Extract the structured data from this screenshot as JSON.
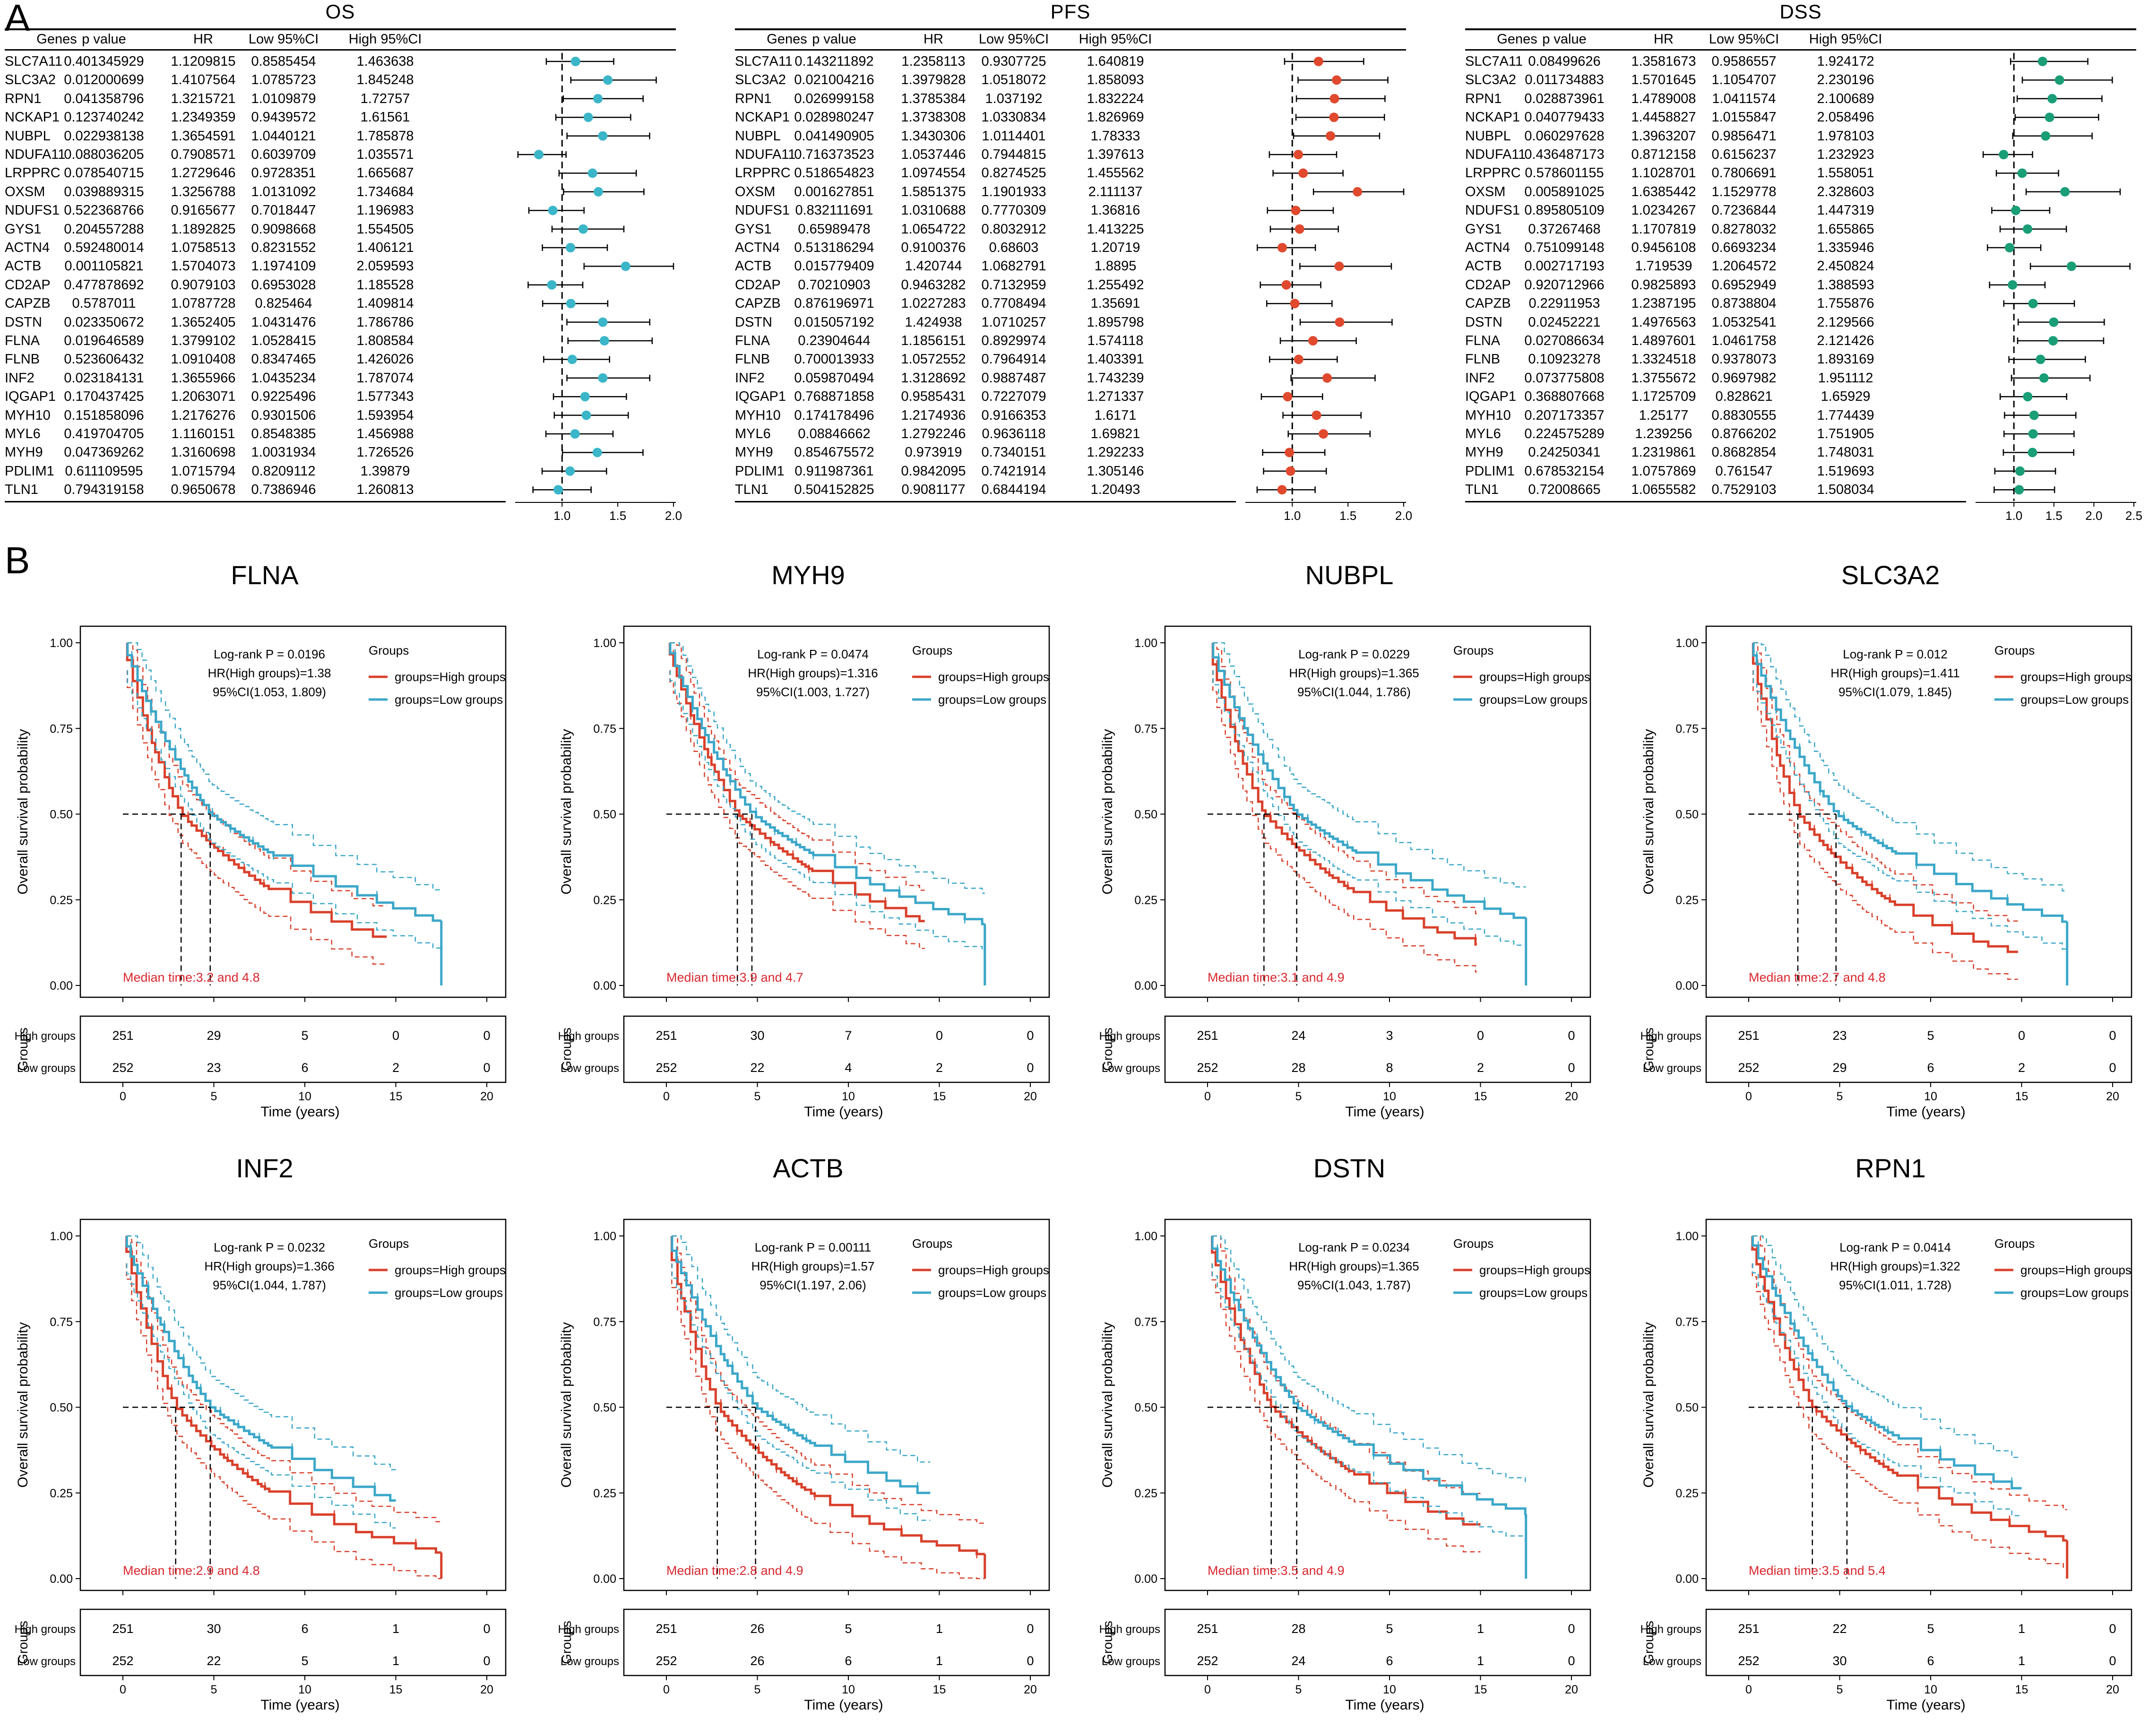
{
  "panels": {
    "a": "A",
    "b": "B"
  },
  "forest_headers": [
    "Genes",
    "p value",
    "HR",
    "Low 95%CI",
    "High 95%CI"
  ],
  "colors": {
    "os": "#3bb6c9",
    "pfs": "#e0492e",
    "dss": "#1a9e77",
    "high": "#d9402b",
    "low": "#3ba7c9"
  },
  "chart_data": [
    {
      "type": "forest",
      "title": "OS",
      "axis_ticks": [
        "1.0",
        "1.5",
        "2.0"
      ],
      "xlim": [
        0.6,
        2.0
      ],
      "rows": [
        {
          "gene": "SLC7A11",
          "p": "0.401345929",
          "hr": "1.1209815",
          "low": "0.8585454",
          "high": "1.463638"
        },
        {
          "gene": "SLC3A2",
          "p": "0.012000699",
          "hr": "1.4107564",
          "low": "1.0785723",
          "high": "1.845248"
        },
        {
          "gene": "RPN1",
          "p": "0.041358796",
          "hr": "1.3215721",
          "low": "1.0109879",
          "high": "1.72757"
        },
        {
          "gene": "NCKAP1",
          "p": "0.123740242",
          "hr": "1.2349359",
          "low": "0.9439572",
          "high": "1.61561"
        },
        {
          "gene": "NUBPL",
          "p": "0.022938138",
          "hr": "1.3654591",
          "low": "1.0440121",
          "high": "1.785878"
        },
        {
          "gene": "NDUFA11",
          "p": "0.088036205",
          "hr": "0.7908571",
          "low": "0.6039709",
          "high": "1.035571"
        },
        {
          "gene": "LRPPRC",
          "p": "0.078540715",
          "hr": "1.2729646",
          "low": "0.9728351",
          "high": "1.665687"
        },
        {
          "gene": "OXSM",
          "p": "0.039889315",
          "hr": "1.3256788",
          "low": "1.0131092",
          "high": "1.734684"
        },
        {
          "gene": "NDUFS1",
          "p": "0.522368766",
          "hr": "0.9165677",
          "low": "0.7018447",
          "high": "1.196983"
        },
        {
          "gene": "GYS1",
          "p": "0.204557288",
          "hr": "1.1892825",
          "low": "0.9098668",
          "high": "1.554505"
        },
        {
          "gene": "ACTN4",
          "p": "0.592480014",
          "hr": "1.0758513",
          "low": "0.8231552",
          "high": "1.406121"
        },
        {
          "gene": "ACTB",
          "p": "0.001105821",
          "hr": "1.5704073",
          "low": "1.1974109",
          "high": "2.059593"
        },
        {
          "gene": "CD2AP",
          "p": "0.477878692",
          "hr": "0.9079103",
          "low": "0.6953028",
          "high": "1.185528"
        },
        {
          "gene": "CAPZB",
          "p": "0.5787011",
          "hr": "1.0787728",
          "low": "0.825464",
          "high": "1.409814"
        },
        {
          "gene": "DSTN",
          "p": "0.023350672",
          "hr": "1.3652405",
          "low": "1.0431476",
          "high": "1.786786"
        },
        {
          "gene": "FLNA",
          "p": "0.019646589",
          "hr": "1.3799102",
          "low": "1.0528415",
          "high": "1.808584"
        },
        {
          "gene": "FLNB",
          "p": "0.523606432",
          "hr": "1.0910408",
          "low": "0.8347465",
          "high": "1.426026"
        },
        {
          "gene": "INF2",
          "p": "0.023184131",
          "hr": "1.3655966",
          "low": "1.0435234",
          "high": "1.787074"
        },
        {
          "gene": "IQGAP1",
          "p": "0.170437425",
          "hr": "1.2063071",
          "low": "0.9225496",
          "high": "1.577343"
        },
        {
          "gene": "MYH10",
          "p": "0.151858096",
          "hr": "1.2176276",
          "low": "0.9301506",
          "high": "1.593954"
        },
        {
          "gene": "MYL6",
          "p": "0.419704705",
          "hr": "1.1160151",
          "low": "0.8548385",
          "high": "1.456988"
        },
        {
          "gene": "MYH9",
          "p": "0.047369262",
          "hr": "1.3160698",
          "low": "1.0031934",
          "high": "1.726526"
        },
        {
          "gene": "PDLIM1",
          "p": "0.611109595",
          "hr": "1.0715794",
          "low": "0.8209112",
          "high": "1.39879"
        },
        {
          "gene": "TLN1",
          "p": "0.794319158",
          "hr": "0.9650678",
          "low": "0.7386946",
          "high": "1.260813"
        }
      ]
    },
    {
      "type": "forest",
      "title": "PFS",
      "axis_ticks": [
        "1.0",
        "1.5",
        "2.0"
      ],
      "xlim": [
        0.6,
        2.0
      ],
      "rows": [
        {
          "gene": "SLC7A11",
          "p": "0.143211892",
          "hr": "1.2358113",
          "low": "0.9307725",
          "high": "1.640819"
        },
        {
          "gene": "SLC3A2",
          "p": "0.021004216",
          "hr": "1.3979828",
          "low": "1.0518072",
          "high": "1.858093"
        },
        {
          "gene": "RPN1",
          "p": "0.026999158",
          "hr": "1.3785384",
          "low": "1.037192",
          "high": "1.832224"
        },
        {
          "gene": "NCKAP1",
          "p": "0.028980247",
          "hr": "1.3738308",
          "low": "1.0330834",
          "high": "1.826969"
        },
        {
          "gene": "NUBPL",
          "p": "0.041490905",
          "hr": "1.3430306",
          "low": "1.0114401",
          "high": "1.78333"
        },
        {
          "gene": "NDUFA11",
          "p": "0.716373523",
          "hr": "1.0537446",
          "low": "0.7944815",
          "high": "1.397613"
        },
        {
          "gene": "LRPPRC",
          "p": "0.518654823",
          "hr": "1.0974554",
          "low": "0.8274525",
          "high": "1.455562"
        },
        {
          "gene": "OXSM",
          "p": "0.001627851",
          "hr": "1.5851375",
          "low": "1.1901933",
          "high": "2.111137"
        },
        {
          "gene": "NDUFS1",
          "p": "0.832111691",
          "hr": "1.0310688",
          "low": "0.7770309",
          "high": "1.36816"
        },
        {
          "gene": "GYS1",
          "p": "0.65989478",
          "hr": "1.0654722",
          "low": "0.8032912",
          "high": "1.413225"
        },
        {
          "gene": "ACTN4",
          "p": "0.513186294",
          "hr": "0.9100376",
          "low": "0.68603",
          "high": "1.20719"
        },
        {
          "gene": "ACTB",
          "p": "0.015779409",
          "hr": "1.420744",
          "low": "1.0682791",
          "high": "1.8895"
        },
        {
          "gene": "CD2AP",
          "p": "0.70210903",
          "hr": "0.9463282",
          "low": "0.7132959",
          "high": "1.255492"
        },
        {
          "gene": "CAPZB",
          "p": "0.876196971",
          "hr": "1.0227283",
          "low": "0.7708494",
          "high": "1.35691"
        },
        {
          "gene": "DSTN",
          "p": "0.015057192",
          "hr": "1.424938",
          "low": "1.0710257",
          "high": "1.895798"
        },
        {
          "gene": "FLNA",
          "p": "0.23904644",
          "hr": "1.1856151",
          "low": "0.8929974",
          "high": "1.574118"
        },
        {
          "gene": "FLNB",
          "p": "0.700013933",
          "hr": "1.0572552",
          "low": "0.7964914",
          "high": "1.403391"
        },
        {
          "gene": "INF2",
          "p": "0.059870494",
          "hr": "1.3128692",
          "low": "0.9887487",
          "high": "1.743239"
        },
        {
          "gene": "IQGAP1",
          "p": "0.768871858",
          "hr": "0.9585431",
          "low": "0.7227079",
          "high": "1.271337"
        },
        {
          "gene": "MYH10",
          "p": "0.174178496",
          "hr": "1.2174936",
          "low": "0.9166353",
          "high": "1.6171"
        },
        {
          "gene": "MYL6",
          "p": "0.08846662",
          "hr": "1.2792246",
          "low": "0.9636118",
          "high": "1.69821"
        },
        {
          "gene": "MYH9",
          "p": "0.854675572",
          "hr": "0.973919",
          "low": "0.7340151",
          "high": "1.292233"
        },
        {
          "gene": "PDLIM1",
          "p": "0.911987361",
          "hr": "0.9842095",
          "low": "0.7421914",
          "high": "1.305146"
        },
        {
          "gene": "TLN1",
          "p": "0.504152825",
          "hr": "0.9081177",
          "low": "0.6844194",
          "high": "1.20493"
        }
      ]
    },
    {
      "type": "forest",
      "title": "DSS",
      "axis_ticks": [
        "1.0",
        "1.5",
        "2.0",
        "2.5"
      ],
      "xlim": [
        0.55,
        2.5
      ],
      "rows": [
        {
          "gene": "SLC7A11",
          "p": "0.08499626",
          "hr": "1.3581673",
          "low": "0.9586557",
          "high": "1.924172"
        },
        {
          "gene": "SLC3A2",
          "p": "0.011734883",
          "hr": "1.5701645",
          "low": "1.1054707",
          "high": "2.230196"
        },
        {
          "gene": "RPN1",
          "p": "0.028873961",
          "hr": "1.4789008",
          "low": "1.0411574",
          "high": "2.100689"
        },
        {
          "gene": "NCKAP1",
          "p": "0.040779433",
          "hr": "1.4458827",
          "low": "1.0155847",
          "high": "2.058496"
        },
        {
          "gene": "NUBPL",
          "p": "0.060297628",
          "hr": "1.3963207",
          "low": "0.9856471",
          "high": "1.978103"
        },
        {
          "gene": "NDUFA11",
          "p": "0.436487173",
          "hr": "0.8712158",
          "low": "0.6156237",
          "high": "1.232923"
        },
        {
          "gene": "LRPPRC",
          "p": "0.578601155",
          "hr": "1.1028701",
          "low": "0.7806691",
          "high": "1.558051"
        },
        {
          "gene": "OXSM",
          "p": "0.005891025",
          "hr": "1.6385442",
          "low": "1.1529778",
          "high": "2.328603"
        },
        {
          "gene": "NDUFS1",
          "p": "0.895805109",
          "hr": "1.0234267",
          "low": "0.7236844",
          "high": "1.447319"
        },
        {
          "gene": "GYS1",
          "p": "0.37267468",
          "hr": "1.1707819",
          "low": "0.8278032",
          "high": "1.655865"
        },
        {
          "gene": "ACTN4",
          "p": "0.751099148",
          "hr": "0.9456108",
          "low": "0.6693234",
          "high": "1.335946"
        },
        {
          "gene": "ACTB",
          "p": "0.002717193",
          "hr": "1.719539",
          "low": "1.2064572",
          "high": "2.450824"
        },
        {
          "gene": "CD2AP",
          "p": "0.920712966",
          "hr": "0.9825893",
          "low": "0.6952949",
          "high": "1.388593"
        },
        {
          "gene": "CAPZB",
          "p": "0.22911953",
          "hr": "1.2387195",
          "low": "0.8738804",
          "high": "1.755876"
        },
        {
          "gene": "DSTN",
          "p": "0.02452221",
          "hr": "1.4976563",
          "low": "1.0532541",
          "high": "2.129566"
        },
        {
          "gene": "FLNA",
          "p": "0.027086634",
          "hr": "1.4897601",
          "low": "1.0461758",
          "high": "2.121426"
        },
        {
          "gene": "FLNB",
          "p": "0.10923278",
          "hr": "1.3324518",
          "low": "0.9378073",
          "high": "1.893169"
        },
        {
          "gene": "INF2",
          "p": "0.073775808",
          "hr": "1.3755672",
          "low": "0.9697982",
          "high": "1.951112"
        },
        {
          "gene": "IQGAP1",
          "p": "0.368807668",
          "hr": "1.1725709",
          "low": "0.828621",
          "high": "1.65929"
        },
        {
          "gene": "MYH10",
          "p": "0.207173357",
          "hr": "1.25177",
          "low": "0.8830555",
          "high": "1.774439"
        },
        {
          "gene": "MYL6",
          "p": "0.224575289",
          "hr": "1.239256",
          "low": "0.8766202",
          "high": "1.751905"
        },
        {
          "gene": "MYH9",
          "p": "0.24250341",
          "hr": "1.2319861",
          "low": "0.8682854",
          "high": "1.748031"
        },
        {
          "gene": "PDLIM1",
          "p": "0.678532154",
          "hr": "1.0757869",
          "low": "0.761547",
          "high": "1.519693"
        },
        {
          "gene": "TLN1",
          "p": "0.72008665",
          "hr": "1.0655582",
          "low": "0.7529103",
          "high": "1.508034"
        }
      ]
    },
    {
      "type": "km",
      "title": "FLNA",
      "logrank": "Log-rank P = 0.0196",
      "hr_text": "HR(High groups)=1.38",
      "ci_text": "95%CI(1.053, 1.809)",
      "median_text": "Median time:3.2 and 4.8",
      "median_high": 3.2,
      "median_low": 4.8,
      "high_counts": [
        "251",
        "29",
        "5",
        "0",
        "0"
      ],
      "low_counts": [
        "252",
        "23",
        "6",
        "2",
        "0"
      ],
      "end_high": 14.5,
      "end_low": 17.5
    },
    {
      "type": "km",
      "title": "MYH9",
      "logrank": "Log-rank P = 0.0474",
      "hr_text": "HR(High groups)=1.316",
      "ci_text": "95%CI(1.003, 1.727)",
      "median_text": "Median time:3.9 and 4.7",
      "median_high": 3.9,
      "median_low": 4.7,
      "high_counts": [
        "251",
        "30",
        "7",
        "0",
        "0"
      ],
      "low_counts": [
        "252",
        "22",
        "4",
        "2",
        "0"
      ],
      "end_high": 14.2,
      "end_low": 17.5
    },
    {
      "type": "km",
      "title": "NUBPL",
      "logrank": "Log-rank P = 0.0229",
      "hr_text": "HR(High groups)=1.365",
      "ci_text": "95%CI(1.044, 1.786)",
      "median_text": "Median time:3.1 and 4.9",
      "median_high": 3.1,
      "median_low": 4.9,
      "high_counts": [
        "251",
        "24",
        "3",
        "0",
        "0"
      ],
      "low_counts": [
        "252",
        "28",
        "8",
        "2",
        "0"
      ],
      "end_high": 14.8,
      "end_low": 17.5
    },
    {
      "type": "km",
      "title": "SLC3A2",
      "logrank": "Log-rank P = 0.012",
      "hr_text": "HR(High groups)=1.411",
      "ci_text": "95%CI(1.079, 1.845)",
      "median_text": "Median time:2.7 and 4.8",
      "median_high": 2.7,
      "median_low": 4.8,
      "high_counts": [
        "251",
        "23",
        "5",
        "0",
        "0"
      ],
      "low_counts": [
        "252",
        "29",
        "6",
        "2",
        "0"
      ],
      "end_high": 14.8,
      "end_low": 17.5
    },
    {
      "type": "km",
      "title": "INF2",
      "logrank": "Log-rank P = 0.0232",
      "hr_text": "HR(High groups)=1.366",
      "ci_text": "95%CI(1.044, 1.787)",
      "median_text": "Median time:2.9 and 4.8",
      "median_high": 2.9,
      "median_low": 4.8,
      "high_counts": [
        "251",
        "30",
        "6",
        "1",
        "0"
      ],
      "low_counts": [
        "252",
        "22",
        "5",
        "1",
        "0"
      ],
      "end_high": 17.5,
      "end_low": 15.0
    },
    {
      "type": "km",
      "title": "ACTB",
      "logrank": "Log-rank P = 0.00111",
      "hr_text": "HR(High groups)=1.57",
      "ci_text": "95%CI(1.197, 2.06)",
      "median_text": "Median time:2.8 and 4.9",
      "median_high": 2.8,
      "median_low": 4.9,
      "high_counts": [
        "251",
        "26",
        "5",
        "1",
        "0"
      ],
      "low_counts": [
        "252",
        "26",
        "6",
        "1",
        "0"
      ],
      "end_high": 17.5,
      "end_low": 14.5
    },
    {
      "type": "km",
      "title": "DSTN",
      "logrank": "Log-rank P = 0.0234",
      "hr_text": "HR(High groups)=1.365",
      "ci_text": "95%CI(1.043, 1.787)",
      "median_text": "Median time:3.5 and 4.9",
      "median_high": 3.5,
      "median_low": 4.9,
      "high_counts": [
        "251",
        "28",
        "5",
        "1",
        "0"
      ],
      "low_counts": [
        "252",
        "24",
        "6",
        "1",
        "0"
      ],
      "end_high": 15.0,
      "end_low": 17.5
    },
    {
      "type": "km",
      "title": "RPN1",
      "logrank": "Log-rank P = 0.0414",
      "hr_text": "HR(High groups)=1.322",
      "ci_text": "95%CI(1.011, 1.728)",
      "median_text": "Median time:3.5 and 5.4",
      "median_high": 3.5,
      "median_low": 5.4,
      "high_counts": [
        "251",
        "22",
        "5",
        "1",
        "0"
      ],
      "low_counts": [
        "252",
        "30",
        "6",
        "1",
        "0"
      ],
      "end_high": 17.5,
      "end_low": 15.0
    }
  ],
  "km_common": {
    "ylabel": "Overall survival probability",
    "xlabel": "Time (years)",
    "legend_title": "Groups",
    "legend_high": "groups=High groups",
    "legend_low": "groups=Low groups",
    "y_ticks": [
      "1.00",
      "0.75",
      "0.50",
      "0.25",
      "0.00"
    ],
    "x_ticks": [
      "0",
      "5",
      "10",
      "15",
      "20"
    ],
    "risk_axis_label": "Groups",
    "risk_row_high": "High groups",
    "risk_row_low": "Low groups",
    "xmax": 20
  }
}
